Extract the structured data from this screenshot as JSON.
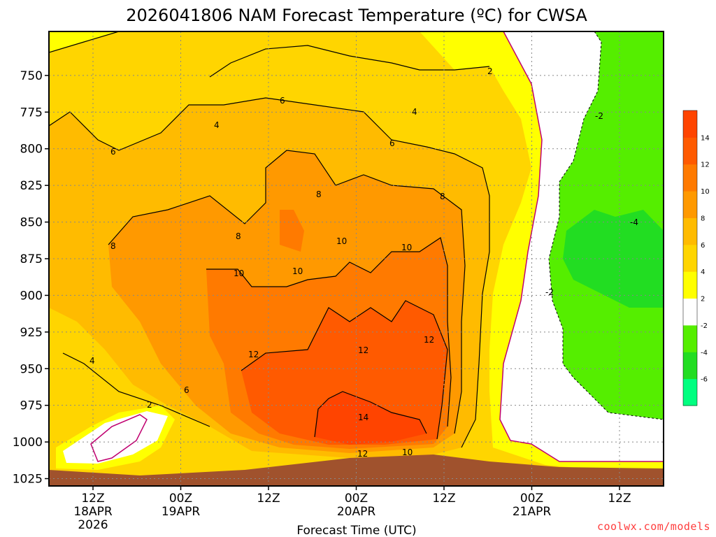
{
  "chart_data": {
    "type": "heatmap",
    "title": "2026041806 NAM Forecast Temperature (ºC) for CWSA",
    "xlabel": "Forecast Time (UTC)",
    "ylabel": "",
    "y_scale": "pressure (inverted)",
    "ylim": [
      1030,
      720
    ],
    "y_ticks": [
      750,
      775,
      800,
      825,
      850,
      875,
      900,
      925,
      950,
      975,
      1000,
      1025
    ],
    "x_ticks": [
      {
        "label": "12Z",
        "sub1": "18APR",
        "sub2": "2026"
      },
      {
        "label": "00Z",
        "sub1": "19APR",
        "sub2": ""
      },
      {
        "label": "12Z",
        "sub1": "",
        "sub2": ""
      },
      {
        "label": "00Z",
        "sub1": "20APR",
        "sub2": ""
      },
      {
        "label": "12Z",
        "sub1": "",
        "sub2": ""
      },
      {
        "label": "00Z",
        "sub1": "21APR",
        "sub2": ""
      },
      {
        "label": "12Z",
        "sub1": "",
        "sub2": ""
      }
    ],
    "colorbar": {
      "levels": [
        -8,
        -6,
        -4,
        -2,
        2,
        4,
        6,
        8,
        10,
        12,
        14,
        16
      ],
      "tick_labels": [
        "-6",
        "-4",
        "-2",
        "2",
        "4",
        "6",
        "8",
        "10",
        "12",
        "14"
      ],
      "colors": [
        "#00ff80",
        "#22dd22",
        "#55ee00",
        "#ffffff",
        "#ffff00",
        "#ffd500",
        "#ffbb00",
        "#ff9900",
        "#ff7a00",
        "#ff5a00",
        "#ff4400"
      ]
    },
    "contour_labels": [
      "2",
      "4",
      "6",
      "8",
      "10",
      "12",
      "14",
      "-2",
      "-4"
    ],
    "grid": true,
    "colors": {
      "ground": "#a0522d",
      "zero_contour": "#c00070"
    }
  },
  "credit": "coolwx.com/models"
}
